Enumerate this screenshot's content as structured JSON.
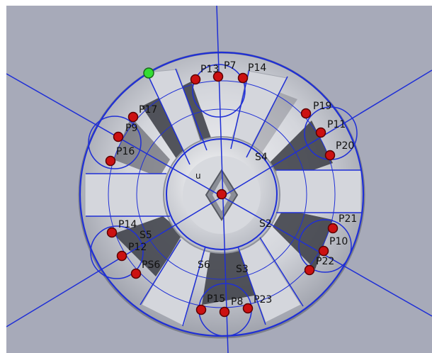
{
  "colors": {
    "background": "#a7aab9",
    "hub_rim": "#e6e7ea",
    "spoke_fill": "#c9ccd3",
    "window_dark": "#3a3c44",
    "construction_line": "#1f2fd6",
    "point_fill": "#cc1111",
    "point_stroke": "#5a0000",
    "selected_point": "#33dd33",
    "label_text": "#111111"
  },
  "labels": {
    "p13": "P13",
    "p7": "P7",
    "p14_top": "P14",
    "p17": "P17",
    "p9": "P9",
    "p16": "P16",
    "p19": "P19",
    "p11": "P11",
    "p20": "P20",
    "s4": "S4",
    "u": "u",
    "p14_left": "P14",
    "s5": "S5",
    "p12": "P12",
    "ps6": "PS6",
    "s2": "S2",
    "p21": "P21",
    "p10": "P10",
    "p22": "P22",
    "s_lower_left": "S6",
    "s3": "S3",
    "p15": "P15",
    "p8": "P8",
    "p23": "P23"
  }
}
